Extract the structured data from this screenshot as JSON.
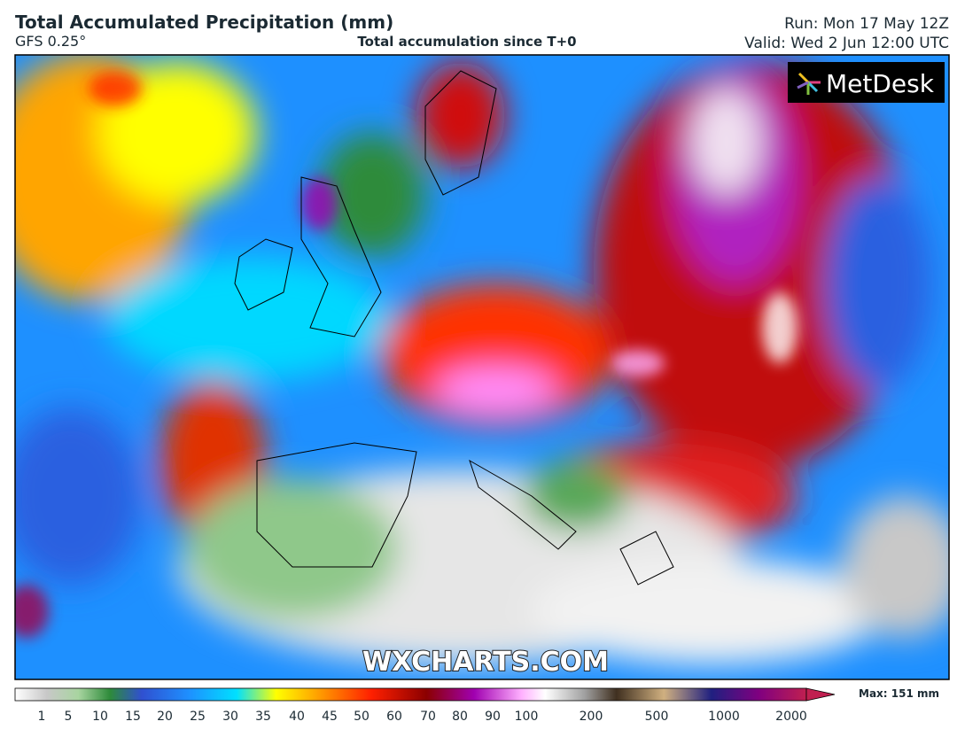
{
  "header": {
    "title": "Total Accumulated Precipitation (mm)",
    "model": "GFS 0.25°",
    "subtitle": "Total accumulation since T+0",
    "run": "Run: Mon 17 May 12Z",
    "valid": "Valid: Wed 2 Jun 12:00 UTC"
  },
  "map": {
    "logo": "MetDesk",
    "watermark": "WXCHARTS.COM"
  },
  "legend": {
    "ticks": [
      1,
      5,
      10,
      15,
      20,
      25,
      30,
      35,
      40,
      45,
      50,
      60,
      70,
      80,
      90,
      100,
      200,
      500,
      1000,
      2000
    ],
    "max": "Max: 151 mm"
  }
}
